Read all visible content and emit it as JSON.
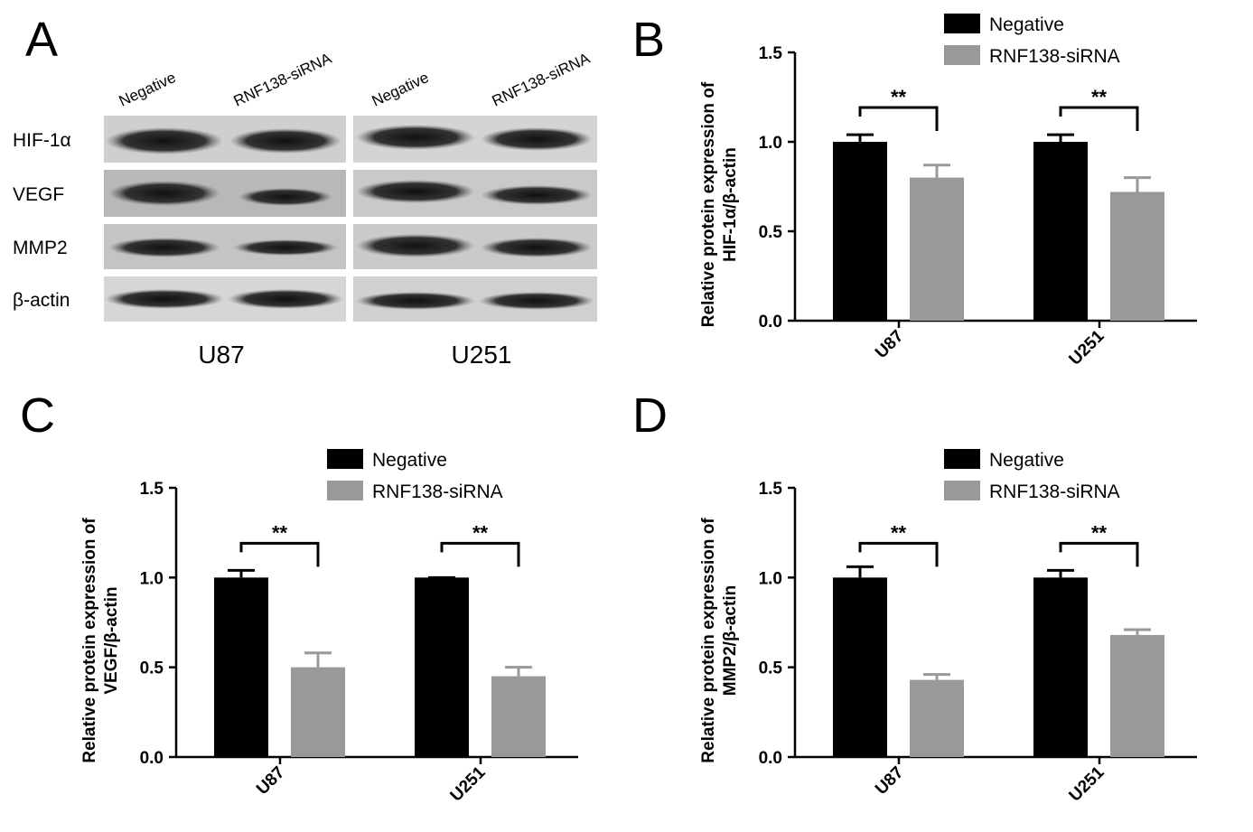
{
  "blot": {
    "panel": "A",
    "lanes": [
      "Negative",
      "RNF138-siRNA",
      "Negative",
      "RNF138-siRNA"
    ],
    "rows": [
      "HIF-1α",
      "VEGF",
      "MMP2",
      "β-actin"
    ],
    "cell_lines": [
      "U87",
      "U251"
    ]
  },
  "chart_data": [
    {
      "type": "bar",
      "panel": "B",
      "y_label": [
        "Relative protein expression of",
        "HIF-1α/β-actin"
      ],
      "categories": [
        "U87",
        "U251"
      ],
      "series": [
        {
          "name": "Negative",
          "color": "#000000",
          "values": [
            1.0,
            1.0
          ],
          "errors": [
            0.04,
            0.04
          ]
        },
        {
          "name": "RNF138-siRNA",
          "color": "#999999",
          "values": [
            0.8,
            0.72
          ],
          "errors": [
            0.07,
            0.08
          ]
        }
      ],
      "annotations": [
        "**",
        "**"
      ],
      "ylim": [
        0,
        1.5
      ],
      "yticks": [
        {
          "value": 0,
          "label": "0.0"
        },
        {
          "value": 0.5,
          "label": "0.5"
        },
        {
          "value": 1,
          "label": "1.0"
        },
        {
          "value": 1.5,
          "label": "1.5"
        }
      ]
    },
    {
      "type": "bar",
      "panel": "C",
      "y_label": [
        "Relative protein expression of",
        "VEGF/β-actin"
      ],
      "categories": [
        "U87",
        "U251"
      ],
      "series": [
        {
          "name": "Negative",
          "color": "#000000",
          "values": [
            1.0,
            1.0
          ],
          "errors": [
            0.04,
            0
          ]
        },
        {
          "name": "RNF138-siRNA",
          "color": "#999999",
          "values": [
            0.5,
            0.45
          ],
          "errors": [
            0.08,
            0.05
          ]
        }
      ],
      "annotations": [
        "**",
        "**"
      ],
      "ylim": [
        0,
        1.5
      ],
      "yticks": [
        {
          "value": 0,
          "label": "0.0"
        },
        {
          "value": 0.5,
          "label": "0.5"
        },
        {
          "value": 1,
          "label": "1.0"
        },
        {
          "value": 1.5,
          "label": "1.5"
        }
      ]
    },
    {
      "type": "bar",
      "panel": "D",
      "y_label": [
        "Relative protein expression of",
        "MMP2/β-actin"
      ],
      "categories": [
        "U87",
        "U251"
      ],
      "series": [
        {
          "name": "Negative",
          "color": "#000000",
          "values": [
            1.0,
            1.0
          ],
          "errors": [
            0.06,
            0.04
          ]
        },
        {
          "name": "RNF138-siRNA",
          "color": "#999999",
          "values": [
            0.43,
            0.68
          ],
          "errors": [
            0.03,
            0.03
          ]
        }
      ],
      "annotations": [
        "**",
        "**"
      ],
      "ylim": [
        0,
        1.5
      ],
      "yticks": [
        {
          "value": 0,
          "label": "0.0"
        },
        {
          "value": 0.5,
          "label": "0.5"
        },
        {
          "value": 1,
          "label": "1.0"
        },
        {
          "value": 1.5,
          "label": "1.5"
        }
      ]
    }
  ]
}
